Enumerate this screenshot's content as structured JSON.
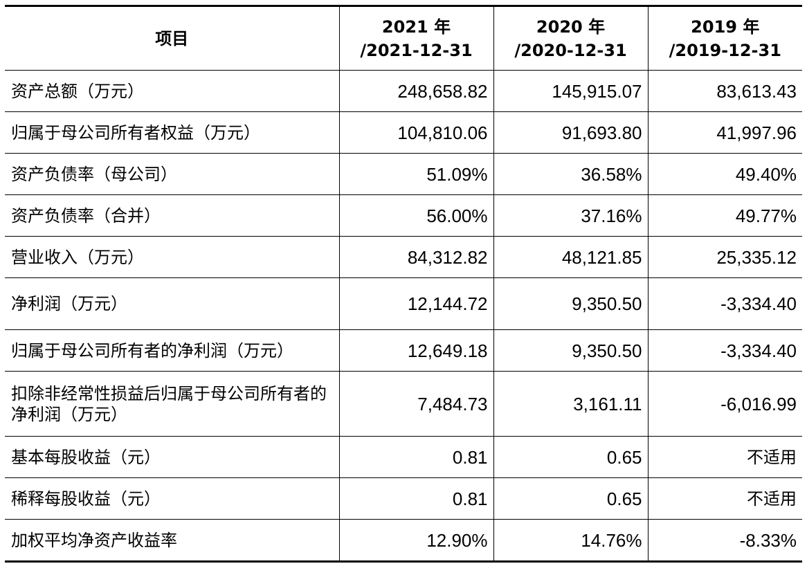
{
  "header": {
    "item": "项目",
    "col2021": [
      "2021 年",
      "/2021-12-31"
    ],
    "col2020": [
      "2020 年",
      "/2020-12-31"
    ],
    "col2019": [
      "2019 年",
      "/2019-12-31"
    ]
  },
  "rows": [
    {
      "label": "资产总额（万元）",
      "v2021": "248,658.82",
      "v2020": "145,915.07",
      "v2019": "83,613.43"
    },
    {
      "label": "归属于母公司所有者权益（万元）",
      "v2021": "104,810.06",
      "v2020": "91,693.80",
      "v2019": "41,997.96"
    },
    {
      "label": "资产负债率（母公司）",
      "v2021": "51.09%",
      "v2020": "36.58%",
      "v2019": "49.40%"
    },
    {
      "label": "资产负债率（合并）",
      "v2021": "56.00%",
      "v2020": "37.16%",
      "v2019": "49.77%"
    },
    {
      "label": "营业收入（万元）",
      "v2021": "84,312.82",
      "v2020": "48,121.85",
      "v2019": "25,335.12"
    },
    {
      "label": "净利润（万元）",
      "v2021": "12,144.72",
      "v2020": "9,350.50",
      "v2019": "-3,334.40"
    },
    {
      "label": "归属于母公司所有者的净利润（万元）",
      "v2021": "12,649.18",
      "v2020": "9,350.50",
      "v2019": "-3,334.40"
    },
    {
      "label": "扣除非经常性损益后归属于母公司所有者的净利润（万元）",
      "v2021": "7,484.73",
      "v2020": "3,161.11",
      "v2019": "-6,016.99"
    },
    {
      "label": "基本每股收益（元）",
      "v2021": "0.81",
      "v2020": "0.65",
      "v2019": "不适用"
    },
    {
      "label": "稀释每股收益（元）",
      "v2021": "0.81",
      "v2020": "0.65",
      "v2019": "不适用"
    },
    {
      "label": "加权平均净资产收益率",
      "v2021": "12.90%",
      "v2020": "14.76%",
      "v2019": "-8.33%"
    }
  ]
}
